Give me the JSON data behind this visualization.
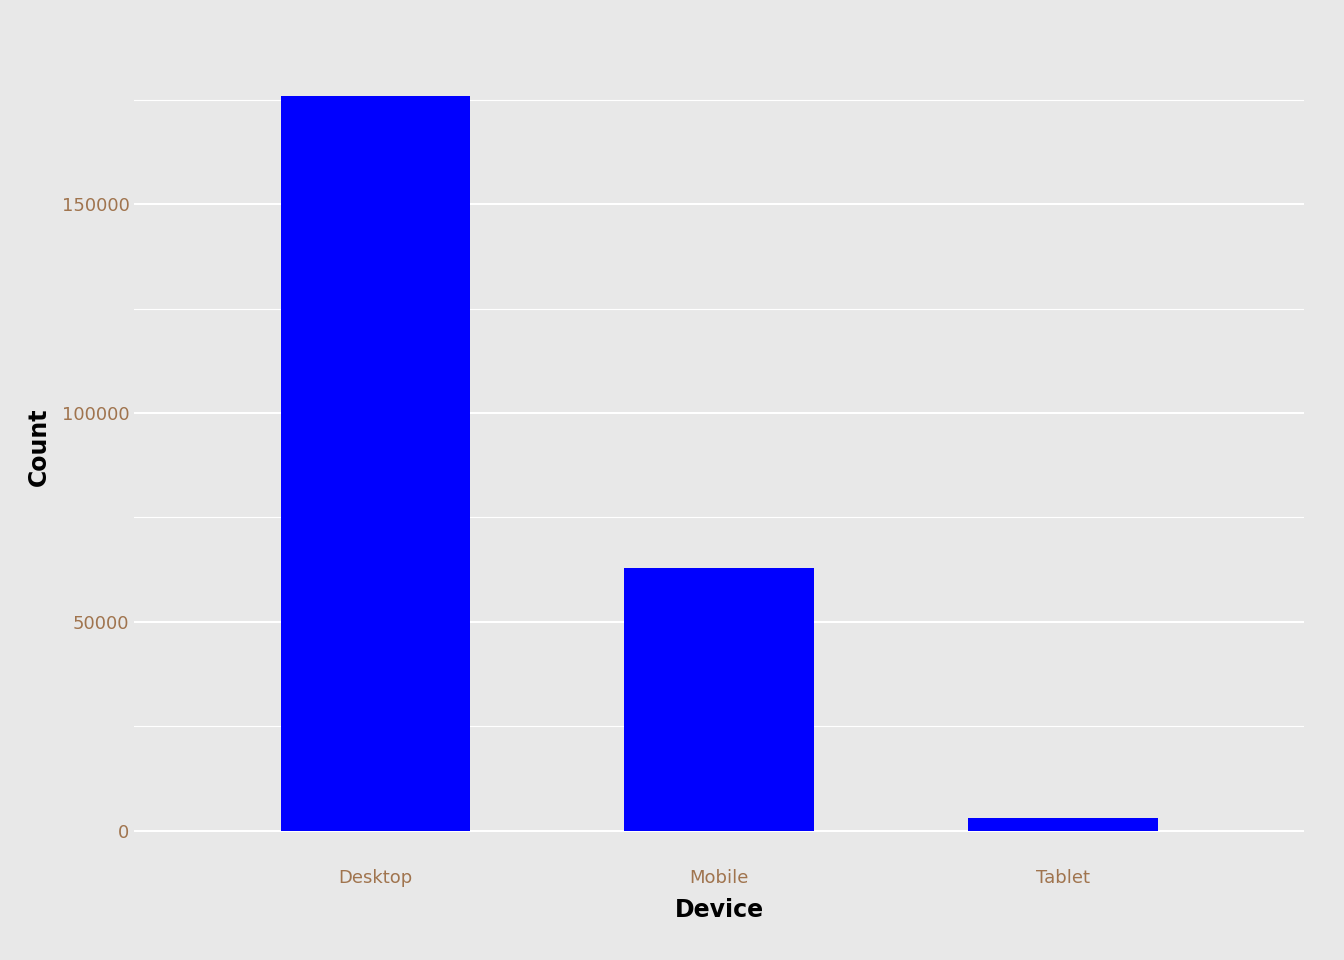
{
  "categories": [
    "Desktop",
    "Mobile",
    "Tablet"
  ],
  "values": [
    176000,
    63000,
    3000
  ],
  "bar_color": "#0000FF",
  "xlabel": "Device",
  "ylabel": "Count",
  "figure_background": "#E8E8E8",
  "panel_background": "#E8E8E8",
  "ylim": [
    -8000,
    192000
  ],
  "yticks": [
    0,
    50000,
    100000,
    150000
  ],
  "tick_label_color": "#A0744E",
  "axis_label_color": "#000000",
  "xlabel_fontsize": 17,
  "ylabel_fontsize": 17,
  "tick_fontsize": 13,
  "bar_width": 0.55,
  "grid_color": "#FFFFFF",
  "grid_linewidth": 1.5
}
